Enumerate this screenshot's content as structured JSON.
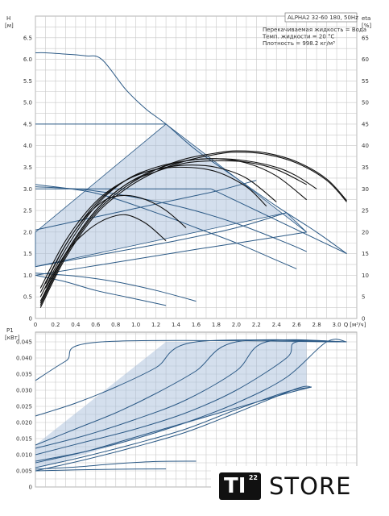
{
  "chart_data": [
    {
      "type": "line",
      "panel": "head-efficiency",
      "info": {
        "model": "ALPHA2 32-60 180, 50Hz",
        "lines": [
          "Перекачиваемая жидкость = Вода",
          "Темп. жидкости = 20 °C",
          "Плотность = 998.2 кг/м³"
        ]
      },
      "ylabel": "H",
      "yunit": "[м]",
      "y2label": "eta",
      "y2unit": "[%]",
      "xlabel": "Q",
      "xunit": "[м³/ч]",
      "xlim": [
        0,
        3.2
      ],
      "ylim": [
        0,
        7.0
      ],
      "y2lim": [
        0,
        70
      ],
      "xticks": [
        "0",
        "0.2",
        "0.4",
        "0.6",
        "0.8",
        "1.0",
        "1.2",
        "1.4",
        "1.6",
        "1.8",
        "2.0",
        "2.2",
        "2.4",
        "2.6",
        "2.8",
        "3.0"
      ],
      "yticks": [
        "0",
        "0.5",
        "1.0",
        "1.5",
        "2.0",
        "2.5",
        "3.0",
        "3.5",
        "4.0",
        "4.5",
        "5.0",
        "5.5",
        "6.0",
        "6.5"
      ],
      "y2ticks": [
        "0",
        "5",
        "10",
        "15",
        "20",
        "25",
        "30",
        "35",
        "40",
        "45",
        "50",
        "55",
        "60",
        "65"
      ],
      "grid": true,
      "shaded_regions": [
        {
          "name": "",
          "x": [
            0,
            1.3,
            2.7,
            2.5,
            0
          ],
          "y": [
            2.0,
            4.5,
            2.0,
            2.45,
            1.2
          ]
        }
      ],
      "series": [
        {
          "kind": "head",
          "x": [
            0,
            0.1,
            0.3,
            0.5,
            0.66,
            0.9,
            1.1,
            1.3,
            1.6,
            2.0,
            2.4,
            2.8,
            3.1
          ],
          "y": [
            6.15,
            6.15,
            6.12,
            6.08,
            6.0,
            5.3,
            4.85,
            4.5,
            3.9,
            3.25,
            2.6,
            2.0,
            1.5
          ]
        },
        {
          "kind": "head",
          "x": [
            0,
            1.3
          ],
          "y": [
            4.5,
            4.5
          ]
        },
        {
          "kind": "head",
          "x": [
            0,
            1.75
          ],
          "y": [
            3.0,
            3.0
          ]
        },
        {
          "kind": "head",
          "x": [
            1.75,
            3.1
          ],
          "y": [
            3.0,
            1.5
          ]
        },
        {
          "kind": "head",
          "x": [
            0,
            0.5,
            1.0,
            1.5,
            2.0,
            2.5,
            2.7
          ],
          "y": [
            3.05,
            2.98,
            2.8,
            2.55,
            2.2,
            1.75,
            1.55
          ]
        },
        {
          "kind": "head",
          "x": [
            0,
            0.6,
            1.2,
            1.6,
            2.0,
            2.4,
            2.6
          ],
          "y": [
            3.1,
            2.9,
            2.45,
            2.1,
            1.75,
            1.35,
            1.15
          ]
        },
        {
          "kind": "head",
          "x": [
            0,
            0.5,
            1.0,
            1.4,
            1.8,
            2.2
          ],
          "y": [
            2.05,
            2.3,
            2.55,
            2.75,
            2.95,
            3.2
          ]
        },
        {
          "kind": "head",
          "x": [
            0,
            0.7,
            1.4,
            2.0,
            2.5
          ],
          "y": [
            1.2,
            1.5,
            1.8,
            2.1,
            2.45
          ]
        },
        {
          "kind": "head",
          "x": [
            0,
            0.8,
            1.6,
            2.3,
            2.7
          ],
          "y": [
            1.0,
            1.3,
            1.6,
            1.85,
            2.0
          ]
        },
        {
          "kind": "head",
          "x": [
            0,
            0.4,
            0.8,
            1.2,
            1.6
          ],
          "y": [
            1.05,
            0.98,
            0.85,
            0.65,
            0.4
          ]
        },
        {
          "kind": "head",
          "x": [
            0,
            0.3,
            0.6,
            0.9,
            1.3
          ],
          "y": [
            1.0,
            0.85,
            0.65,
            0.5,
            0.3
          ]
        },
        {
          "kind": "eta",
          "x": [
            0.05,
            0.3,
            0.6,
            0.9,
            1.2,
            1.5,
            1.8,
            2.0,
            2.3,
            2.6,
            2.9,
            3.1
          ],
          "y2": [
            2.5,
            14,
            24,
            30,
            34,
            36.5,
            38,
            38.5,
            38,
            36,
            32,
            27
          ]
        },
        {
          "kind": "eta",
          "x": [
            0.05,
            0.3,
            0.6,
            0.9,
            1.2,
            1.5,
            1.8,
            2.0,
            2.3,
            2.6,
            2.9,
            3.1
          ],
          "y2": [
            3,
            14.5,
            24.5,
            30.5,
            34.5,
            37,
            38.3,
            38.8,
            38.3,
            36.3,
            32.3,
            27.3
          ]
        },
        {
          "kind": "eta",
          "x": [
            0.05,
            0.3,
            0.6,
            0.9,
            1.2,
            1.5,
            1.8,
            2.1,
            2.4,
            2.6,
            2.8
          ],
          "y2": [
            3.5,
            15,
            25,
            31,
            34.5,
            36.5,
            37,
            36.5,
            35,
            33,
            30
          ]
        },
        {
          "kind": "eta",
          "x": [
            0.05,
            0.3,
            0.6,
            0.9,
            1.2,
            1.5,
            1.8,
            2.1,
            2.4,
            2.7
          ],
          "y2": [
            4,
            15,
            25,
            31,
            34,
            36,
            36.5,
            36.2,
            34.5,
            31
          ]
        },
        {
          "kind": "eta",
          "x": [
            0.05,
            0.3,
            0.6,
            0.9,
            1.2,
            1.5,
            1.8,
            2.1,
            2.4,
            2.7
          ],
          "y2": [
            5,
            16,
            26,
            32,
            35,
            36.5,
            37,
            36,
            33,
            27.5
          ]
        },
        {
          "kind": "eta",
          "x": [
            0.05,
            0.3,
            0.6,
            0.9,
            1.2,
            1.5,
            1.8,
            2.1,
            2.4
          ],
          "y2": [
            6,
            17,
            26.5,
            32,
            34.5,
            35.5,
            35,
            32.5,
            27
          ]
        },
        {
          "kind": "eta",
          "x": [
            0.05,
            0.3,
            0.6,
            0.9,
            1.2,
            1.5,
            1.8,
            2.1,
            2.3
          ],
          "y2": [
            7,
            18,
            27,
            32,
            34.5,
            35,
            34,
            30.5,
            26
          ]
        },
        {
          "kind": "eta",
          "x": [
            0.1,
            0.3,
            0.5,
            0.7,
            0.9,
            1.1,
            1.3,
            1.5
          ],
          "y2": [
            8,
            17,
            23.5,
            27.5,
            28.5,
            27.5,
            25,
            21
          ]
        },
        {
          "kind": "eta",
          "x": [
            0.1,
            0.3,
            0.5,
            0.7,
            0.9,
            1.1,
            1.3
          ],
          "y2": [
            7,
            15,
            20,
            23,
            24,
            22,
            18
          ]
        }
      ]
    },
    {
      "type": "line",
      "panel": "power",
      "ylabel": "P1",
      "yunit": "[кВт]",
      "xlim": [
        0,
        3.2
      ],
      "ylim": [
        0,
        0.048
      ],
      "yticks": [
        "0",
        "0.005",
        "0.010",
        "0.015",
        "0.020",
        "0.025",
        "0.030",
        "0.035",
        "0.040",
        "0.045"
      ],
      "grid": true,
      "shaded_regions": [
        {
          "name": "",
          "x": [
            0,
            1.3,
            2.7,
            2.7,
            0
          ],
          "y": [
            0.013,
            0.045,
            0.045,
            0.031,
            0.0055
          ]
        }
      ],
      "series": [
        {
          "x": [
            0,
            0.3,
            0.66,
            3.1
          ],
          "y": [
            0.033,
            0.039,
            0.045,
            0.045
          ]
        },
        {
          "x": [
            0,
            0.4,
            0.8,
            1.2,
            1.6,
            3.1
          ],
          "y": [
            0.022,
            0.026,
            0.031,
            0.037,
            0.045,
            0.045
          ]
        },
        {
          "x": [
            0,
            0.4,
            0.8,
            1.2,
            1.6,
            2.0,
            3.1
          ],
          "y": [
            0.013,
            0.018,
            0.023,
            0.029,
            0.036,
            0.045,
            0.045
          ]
        },
        {
          "x": [
            0,
            0.5,
            1.0,
            1.5,
            2.0,
            2.3,
            3.1
          ],
          "y": [
            0.012,
            0.016,
            0.021,
            0.027,
            0.036,
            0.045,
            0.045
          ]
        },
        {
          "x": [
            0,
            0.5,
            1.0,
            1.5,
            2.0,
            2.5,
            2.6,
            3.1
          ],
          "y": [
            0.01,
            0.014,
            0.018,
            0.023,
            0.03,
            0.04,
            0.045,
            0.045
          ]
        },
        {
          "x": [
            0,
            0.5,
            1.0,
            1.5,
            2.0,
            2.5,
            2.9,
            3.1
          ],
          "y": [
            0.008,
            0.011,
            0.015,
            0.02,
            0.026,
            0.034,
            0.045,
            0.045
          ]
        },
        {
          "x": [
            0,
            0.5,
            1.0,
            1.5,
            2.0,
            2.5,
            2.75
          ],
          "y": [
            0.0075,
            0.011,
            0.0155,
            0.02,
            0.0245,
            0.029,
            0.031
          ]
        },
        {
          "x": [
            0,
            0.5,
            1.0,
            1.5,
            2.0,
            2.5,
            2.75
          ],
          "y": [
            0.006,
            0.0095,
            0.0135,
            0.018,
            0.024,
            0.0295,
            0.031
          ]
        },
        {
          "x": [
            0,
            0.5,
            1.0,
            1.5,
            2.0,
            2.6,
            2.75
          ],
          "y": [
            0.005,
            0.0085,
            0.0125,
            0.017,
            0.023,
            0.0305,
            0.031
          ]
        },
        {
          "x": [
            0,
            0.4,
            0.8,
            1.2,
            1.6
          ],
          "y": [
            0.0055,
            0.0062,
            0.0072,
            0.0079,
            0.008
          ]
        },
        {
          "x": [
            0,
            0.4,
            0.8,
            1.3
          ],
          "y": [
            0.005,
            0.0053,
            0.0055,
            0.0056
          ]
        }
      ]
    }
  ],
  "logo": {
    "mark": "TI",
    "superscript": "22",
    "text": "STORE"
  }
}
